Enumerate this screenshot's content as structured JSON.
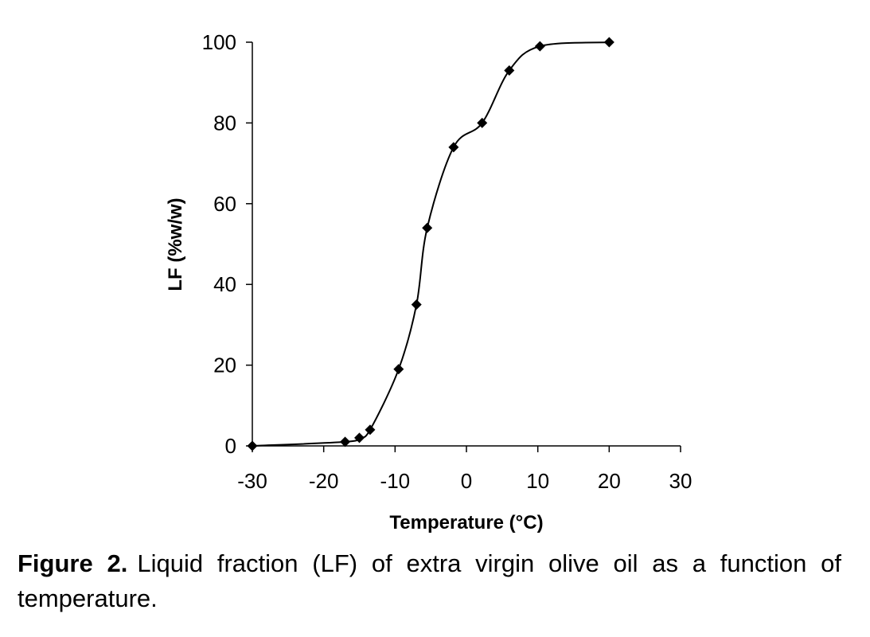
{
  "figure": {
    "label": "Figure 2.",
    "caption": "Liquid fraction (LF) of extra virgin olive oil as a function of temperature."
  },
  "chart_data": {
    "type": "line",
    "title": "",
    "xlabel": "Temperature (°C)",
    "ylabel": "LF (%w/w)",
    "xlim": [
      -30,
      30
    ],
    "ylim": [
      0,
      100
    ],
    "xticks": [
      -30,
      -20,
      -10,
      0,
      10,
      20,
      30
    ],
    "yticks": [
      0,
      20,
      40,
      60,
      80,
      100
    ],
    "xtick_labels": [
      "-30",
      "-20",
      "-10",
      "0",
      "10",
      "20",
      "30"
    ],
    "ytick_labels": [
      "0",
      "20",
      "40",
      "60",
      "80",
      "100"
    ],
    "grid": false,
    "legend": "none",
    "smooth": true,
    "marker": "diamond",
    "color": "#000000",
    "series": [
      {
        "x": [
          -30,
          -17,
          -15,
          -13.5,
          -9.5,
          -7,
          -5.5,
          -1.8,
          2.2,
          6,
          10.3,
          20
        ],
        "y": [
          0,
          1,
          2,
          4,
          19,
          35,
          54,
          74,
          80,
          93,
          99,
          100
        ]
      }
    ]
  }
}
